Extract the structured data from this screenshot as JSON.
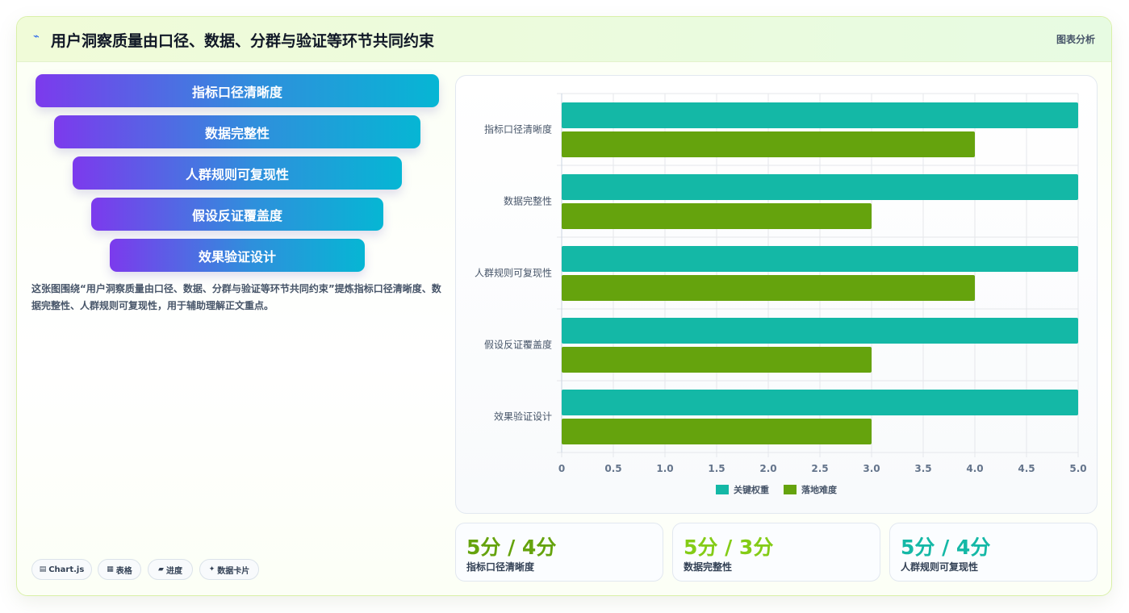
{
  "header": {
    "icon": "chart-line-icon",
    "title": "用户洞察质量由口径、数据、分群与验证等环节共同约束",
    "tag": "图表分析"
  },
  "funnel": {
    "items": [
      "指标口径清晰度",
      "数据完整性",
      "人群规则可复现性",
      "假设反证覆盖度",
      "效果验证设计"
    ]
  },
  "description": "这张图围绕“用户洞察质量由口径、数据、分群与验证等环节共同约束”提炼指标口径清晰度、数据完整性、人群规则可复现性，用于辅助理解正文重点。",
  "chips": [
    {
      "icon": "chart-icon",
      "glyph": "▤",
      "label": "Chart.js"
    },
    {
      "icon": "table-icon",
      "glyph": "▦",
      "label": "表格"
    },
    {
      "icon": "progress-icon",
      "glyph": "▰",
      "label": "进度"
    },
    {
      "icon": "sparkle-icon",
      "glyph": "✦",
      "label": "数据卡片"
    }
  ],
  "chart_data": {
    "type": "bar",
    "orientation": "horizontal",
    "categories": [
      "指标口径清晰度",
      "数据完整性",
      "人群规则可复现性",
      "假设反证覆盖度",
      "效果验证设计"
    ],
    "series": [
      {
        "name": "关键权重",
        "values": [
          5,
          5,
          5,
          5,
          5
        ],
        "color": "#14b8a6"
      },
      {
        "name": "落地难度",
        "values": [
          4,
          3,
          4,
          3,
          3
        ],
        "color": "#65a30d"
      }
    ],
    "xlim": [
      0,
      5
    ],
    "xticks": [
      "0",
      "0.5",
      "1.0",
      "1.5",
      "2.0",
      "2.5",
      "3.0",
      "3.5",
      "4.0",
      "4.5",
      "5.0"
    ],
    "grid": true,
    "legend": "bottom"
  },
  "stats": [
    {
      "value": "5分 / 4分",
      "label": "指标口径清晰度",
      "color": "#65a30d"
    },
    {
      "value": "5分 / 3分",
      "label": "数据完整性",
      "color": "#84cc16"
    },
    {
      "value": "5分 / 4分",
      "label": "人群规则可复现性",
      "color": "#14b8a6"
    }
  ]
}
